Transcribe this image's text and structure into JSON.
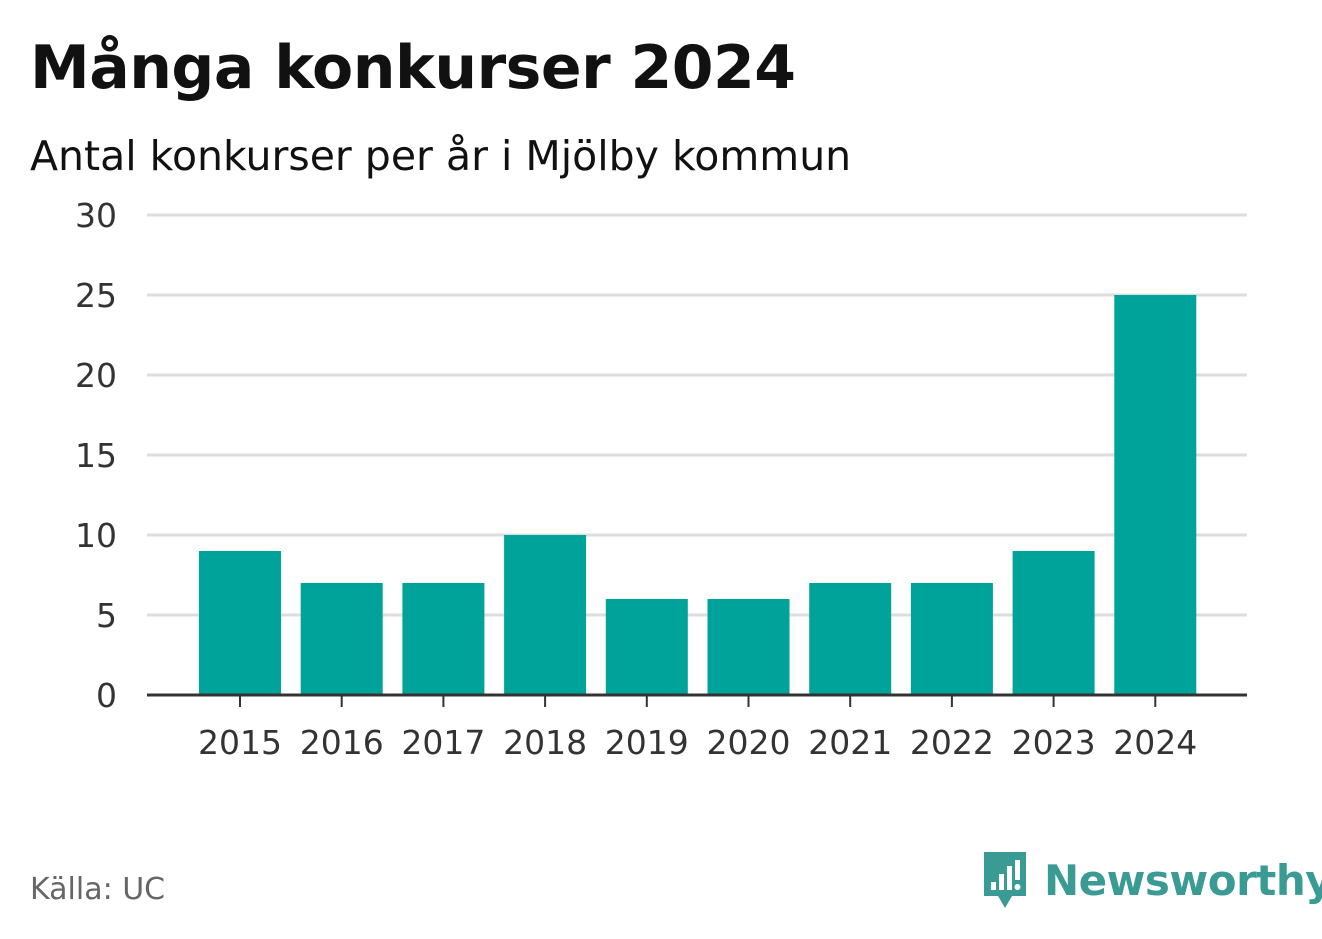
{
  "title": "Många konkurser 2024",
  "subtitle": "Antal konkurser per år i Mjölby kommun",
  "source": "Källa: UC",
  "brand": {
    "name": "Newsworthy",
    "icon": "newsworthy-logo-icon",
    "color": "#3a9a94"
  },
  "colors": {
    "bar": "#00a39a",
    "grid": "#dddddd",
    "axis": "#333333",
    "tick_text": "#333333"
  },
  "chart_data": {
    "type": "bar",
    "categories": [
      "2015",
      "2016",
      "2017",
      "2018",
      "2019",
      "2020",
      "2021",
      "2022",
      "2023",
      "2024"
    ],
    "values": [
      9,
      7,
      7,
      10,
      6,
      6,
      7,
      7,
      9,
      25
    ],
    "title": "Många konkurser 2024",
    "subtitle": "Antal konkurser per år i Mjölby kommun",
    "xlabel": "",
    "ylabel": "",
    "ylim": [
      0,
      30
    ],
    "yticks": [
      0,
      5,
      10,
      15,
      20,
      25,
      30
    ],
    "grid": true,
    "legend": "none"
  }
}
